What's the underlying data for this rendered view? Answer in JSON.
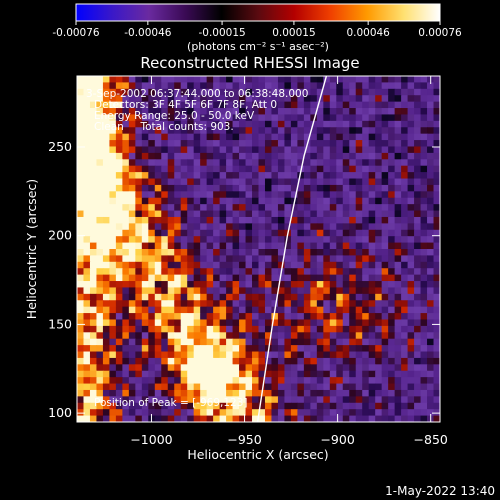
{
  "colorbar": {
    "ticks": [
      {
        "value": -0.00076,
        "label": "-0.00076"
      },
      {
        "value": -0.00046,
        "label": "-0.00046"
      },
      {
        "value": -0.00015,
        "label": "-0.00015"
      },
      {
        "value": 0.00015,
        "label": "0.00015"
      },
      {
        "value": 0.00046,
        "label": "0.00046"
      },
      {
        "value": 0.00076,
        "label": "0.00076"
      }
    ],
    "range": [
      -0.00076,
      0.00076
    ],
    "units_label": "(photons cm⁻² s⁻¹ asec⁻²)",
    "colors": [
      "#0000ff",
      "#3a18c8",
      "#6a2aa0",
      "#3a0a55",
      "#000000",
      "#5a0a10",
      "#b40000",
      "#f04000",
      "#ff9a00",
      "#ffe070",
      "#ffffff"
    ]
  },
  "chart_data": {
    "type": "heatmap",
    "title": "Reconstructed RHESSI Image",
    "xlabel": "Heliocentric X (arcsec)",
    "ylabel": "Heliocentric Y (arcsec)",
    "xlim": [
      -1040,
      -845
    ],
    "ylim": [
      95,
      290
    ],
    "xticks": [
      {
        "value": -1000,
        "label": "−1000"
      },
      {
        "value": -950,
        "label": "−950"
      },
      {
        "value": -900,
        "label": "−900"
      },
      {
        "value": -850,
        "label": "−850"
      }
    ],
    "yticks": [
      {
        "value": 100,
        "label": "100"
      },
      {
        "value": 150,
        "label": "150"
      },
      {
        "value": 200,
        "label": "200"
      },
      {
        "value": 250,
        "label": "250"
      }
    ],
    "annotations": [
      "3-Sep-2002 06:37:44.000 to 06:38:48.000",
      "Detectors: 3F 4F 5F 6F 7F 8F, Att 0",
      "Energy Range: 25.0 - 50.0 keV",
      "Clean     Total counts: 903."
    ],
    "peak_label": "Position of Peak = [-969,123]",
    "limb_curve": [
      [
        -943,
        95
      ],
      [
        -935,
        150
      ],
      [
        -927,
        200
      ],
      [
        -918,
        245
      ],
      [
        -910,
        275
      ],
      [
        -906,
        290
      ]
    ],
    "grid": false,
    "legend": "none"
  },
  "footer_timestamp": "1-May-2022 13:40"
}
